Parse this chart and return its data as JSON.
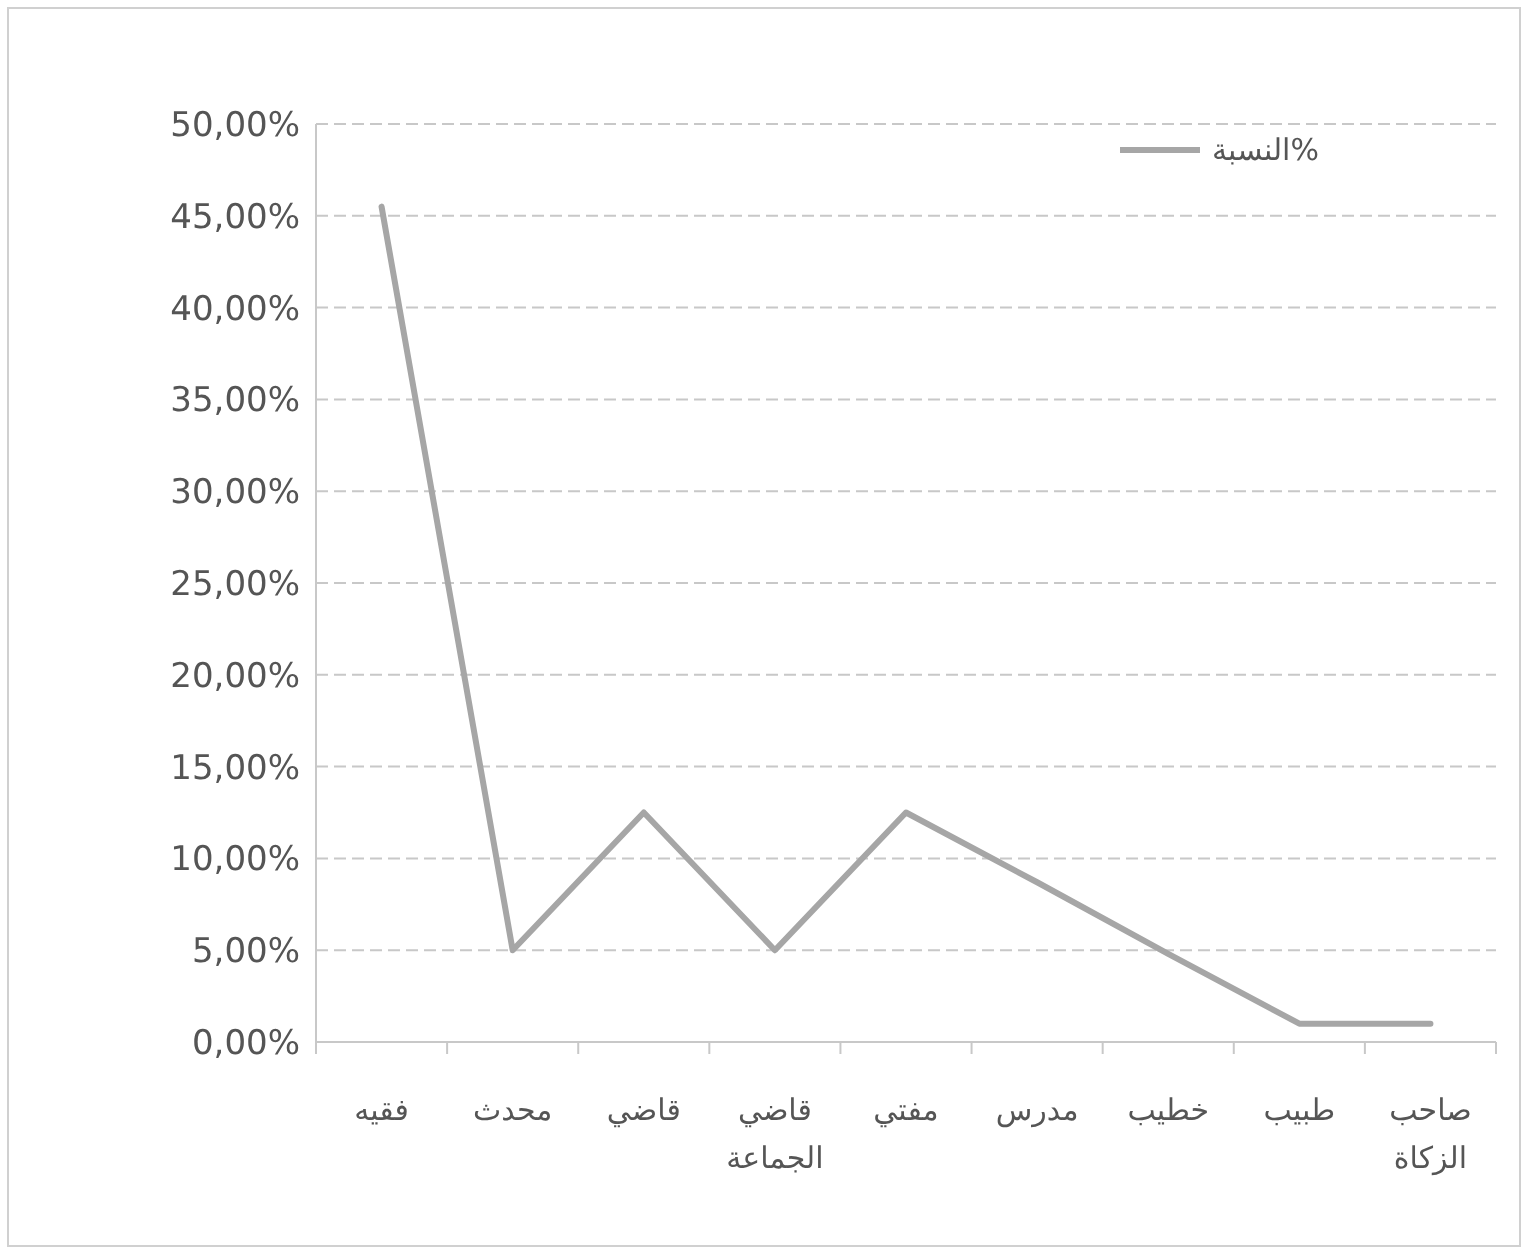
{
  "chart_data": {
    "type": "line",
    "categories": [
      "فقيه",
      "محدث",
      "قاضي",
      "قاضي الجماعة",
      "مفتي",
      "مدرس",
      "خطيب",
      "طبيب",
      "صاحب الزكاة"
    ],
    "series": [
      {
        "name": "النسبة%",
        "color": "#a6a6a6",
        "values": [
          45.5,
          5,
          12.5,
          5,
          12.5,
          8.7,
          4.8,
          1,
          1
        ]
      }
    ],
    "ylim": [
      0,
      50
    ],
    "yticks": [
      {
        "value": 0,
        "label": "0,00%"
      },
      {
        "value": 5,
        "label": "5,00%"
      },
      {
        "value": 10,
        "label": "10,00%"
      },
      {
        "value": 15,
        "label": "15,00%"
      },
      {
        "value": 20,
        "label": "20,00%"
      },
      {
        "value": 25,
        "label": "25,00%"
      },
      {
        "value": 30,
        "label": "30,00%"
      },
      {
        "value": 35,
        "label": "35,00%"
      },
      {
        "value": 40,
        "label": "40,00%"
      },
      {
        "value": 45,
        "label": "45,00%"
      },
      {
        "value": 50,
        "label": "50,00%"
      }
    ],
    "grid": "y",
    "legend": "top right",
    "marker": "none",
    "line_style": "solid"
  }
}
